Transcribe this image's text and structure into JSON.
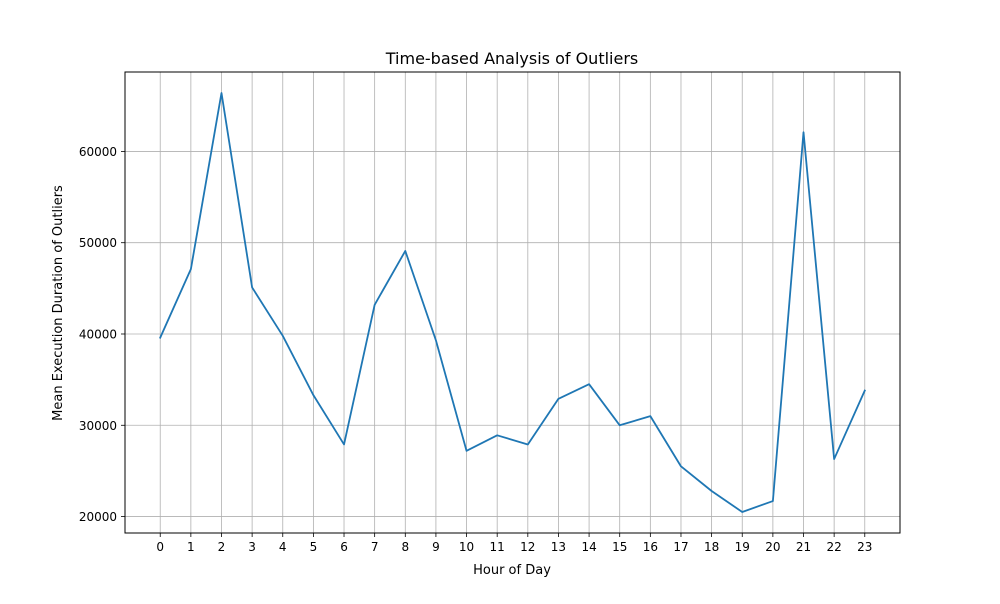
{
  "chart_data": {
    "type": "line",
    "title": "Time-based Analysis of Outliers",
    "xlabel": "Hour of Day",
    "ylabel": "Mean Execution Duration of Outliers",
    "x": [
      0,
      1,
      2,
      3,
      4,
      5,
      6,
      7,
      8,
      9,
      10,
      11,
      12,
      13,
      14,
      15,
      16,
      17,
      18,
      19,
      20,
      21,
      22,
      23
    ],
    "xticks": [
      "0",
      "1",
      "2",
      "3",
      "4",
      "5",
      "6",
      "7",
      "8",
      "9",
      "10",
      "11",
      "12",
      "13",
      "14",
      "15",
      "16",
      "17",
      "18",
      "19",
      "20",
      "21",
      "22",
      "23"
    ],
    "yticks": [
      20000,
      30000,
      40000,
      50000,
      60000
    ],
    "ytick_labels": [
      "20000",
      "30000",
      "40000",
      "50000",
      "60000"
    ],
    "xlim": [
      -1.15,
      24.15
    ],
    "ylim": [
      18200,
      68700
    ],
    "grid": true,
    "series": [
      {
        "color": "#1f77b4",
        "values": [
          39600,
          47100,
          66400,
          45100,
          39800,
          33300,
          27900,
          43200,
          49100,
          39300,
          27200,
          28900,
          27900,
          32900,
          34500,
          30000,
          31000,
          25500,
          22800,
          20500,
          21700,
          62100,
          26300,
          33800
        ]
      }
    ]
  }
}
